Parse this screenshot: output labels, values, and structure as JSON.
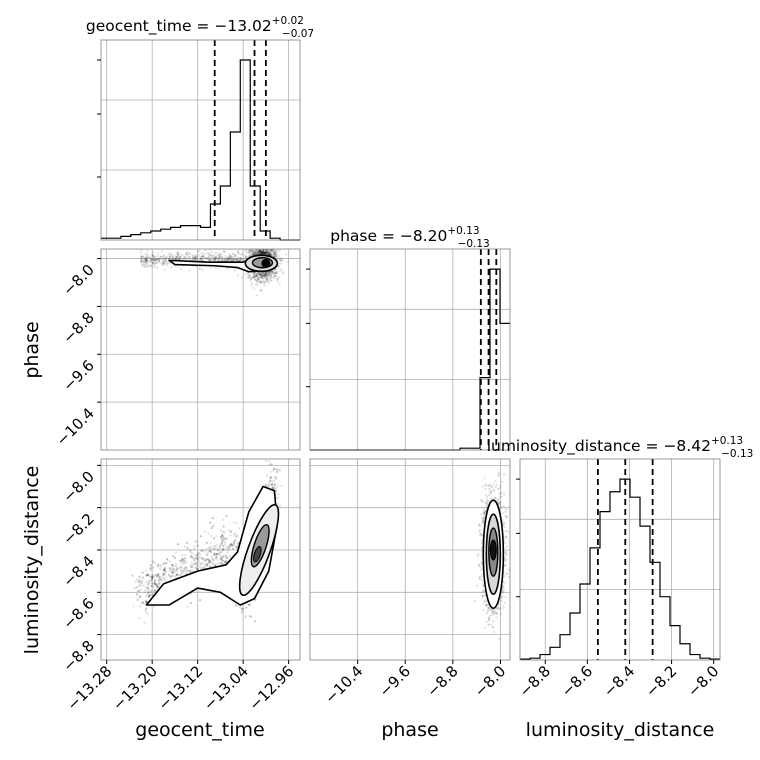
{
  "chart_data": {
    "type": "scatter",
    "kind": "corner-plot",
    "parameters": [
      "geocent_time",
      "phase",
      "luminosity_distance"
    ],
    "titles": {
      "geocent_time": {
        "name": "geocent_time",
        "median": "−13.02",
        "plus": "+0.02",
        "minus": "−0.07"
      },
      "phase": {
        "name": "phase",
        "median": "−8.20",
        "plus": "+0.13",
        "minus": "−0.13"
      },
      "luminosity_distance": {
        "name": "luminosity_distance",
        "median": "−8.42",
        "plus": "+0.13",
        "minus": "−0.13"
      }
    },
    "axis_labels": {
      "x": [
        "geocent_time",
        "phase",
        "luminosity_distance"
      ],
      "y": [
        "phase",
        "luminosity_distance"
      ]
    },
    "ranges": {
      "geocent_time": [
        -13.29,
        -12.94
      ],
      "phase": [
        -11.2,
        -7.84
      ],
      "luminosity_distance": [
        -8.92,
        -7.97
      ]
    },
    "ticks": {
      "geocent_time": {
        "values": [
          -13.28,
          -13.2,
          -13.12,
          -13.04,
          -12.96
        ],
        "labels": [
          "−13.28",
          "−13.20",
          "−13.12",
          "−13.04",
          "−12.96"
        ]
      },
      "phase": {
        "values": [
          -10.4,
          -9.6,
          -8.8,
          -8.0
        ],
        "labels": [
          "−10.4",
          "−9.6",
          "−8.8",
          "−8.0"
        ]
      },
      "luminosity_distance": {
        "values": [
          -8.8,
          -8.6,
          -8.4,
          -8.2,
          -8.0
        ],
        "labels": [
          "−8.8",
          "−8.6",
          "−8.4",
          "−8.2",
          "−8.0"
        ]
      }
    },
    "quantiles": {
      "geocent_time": [
        -13.09,
        -13.02,
        -13.0
      ],
      "phase": [
        -8.33,
        -8.2,
        -8.07
      ],
      "luminosity_distance": [
        -8.55,
        -8.42,
        -8.29
      ]
    },
    "histograms": {
      "geocent_time": {
        "range": [
          -13.29,
          -12.94
        ],
        "counts": [
          1,
          1,
          2,
          3,
          4,
          5,
          6,
          7,
          8,
          8,
          7,
          20,
          30,
          60,
          100,
          30,
          5,
          1,
          0,
          0
        ]
      },
      "phase": {
        "range": [
          -11.2,
          -7.84
        ],
        "counts": [
          0,
          0,
          0,
          0,
          0,
          0,
          0,
          0,
          0,
          0,
          0,
          0,
          0,
          0,
          0,
          1,
          1,
          40,
          100,
          70
        ]
      },
      "luminosity_distance": {
        "range": [
          -8.92,
          -7.97
        ],
        "counts": [
          0.5,
          1,
          3,
          7,
          14,
          26,
          42,
          62,
          82,
          93,
          100,
          90,
          74,
          54,
          35,
          19,
          9,
          3,
          1,
          0.5
        ]
      }
    },
    "grid": true
  }
}
